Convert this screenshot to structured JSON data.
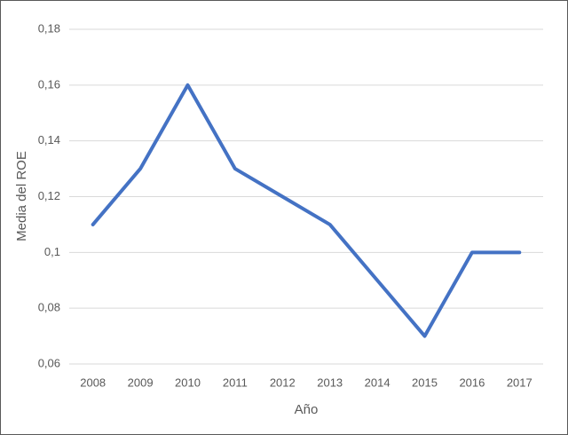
{
  "chart_data": {
    "type": "line",
    "x_label": "Año",
    "y_label": "Media del ROE",
    "categories": [
      "2008",
      "2009",
      "2010",
      "2011",
      "2012",
      "2013",
      "2014",
      "2015",
      "2016",
      "2017"
    ],
    "values": [
      0.11,
      0.13,
      0.16,
      0.13,
      0.12,
      0.11,
      0.09,
      0.07,
      0.1,
      0.1
    ],
    "color": "#4472c4",
    "ylim": [
      0.06,
      0.18
    ],
    "yticks": [
      {
        "value": 0.06,
        "label": "0,06"
      },
      {
        "value": 0.08,
        "label": "0,08"
      },
      {
        "value": 0.1,
        "label": "0,1"
      },
      {
        "value": 0.12,
        "label": "0,12"
      },
      {
        "value": 0.14,
        "label": "0,14"
      },
      {
        "value": 0.16,
        "label": "0,16"
      },
      {
        "value": 0.18,
        "label": "0,18"
      }
    ],
    "grid": true
  }
}
